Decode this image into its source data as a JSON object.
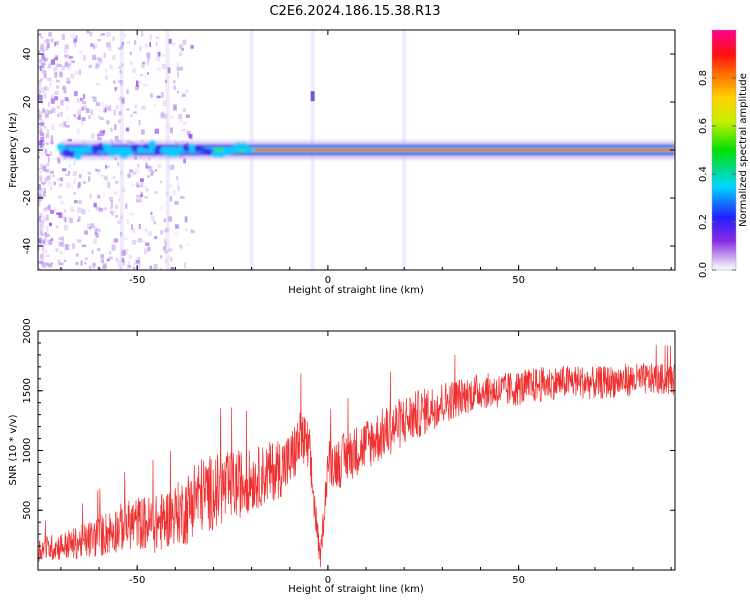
{
  "figure_title": "C2E6.2024.186.15.38.R13",
  "colors": {
    "snr_line": "#f03030",
    "axis": "#000000",
    "background": "#ffffff"
  },
  "chart_data": [
    {
      "type": "heatmap",
      "xlabel": "Height of straight line (km)",
      "ylabel": "Frequency (Hz)",
      "xlim": [
        -76,
        91
      ],
      "ylim": [
        -50,
        50
      ],
      "xticks": [
        -50,
        0,
        50
      ],
      "yticks": [
        -40,
        -20,
        0,
        20,
        40
      ],
      "colorbar": {
        "label": "Normalized spectral amplitude",
        "range": [
          0,
          1
        ],
        "ticks": [
          0.0,
          0.2,
          0.4,
          0.6,
          0.8
        ],
        "colormap": "rainbow (purple → blue → cyan → green → yellow → orange → red → magenta)"
      },
      "description_points": {
        "main_ridge_frequency_hz": 0,
        "main_ridge_x_range_km": [
          -70,
          91
        ],
        "scattered_noise_x_range_km": [
          -76,
          -40
        ],
        "feature_at_x_km": -4,
        "feature_frequency_hz": 22
      }
    },
    {
      "type": "line",
      "xlabel": "Height of straight line (km)",
      "ylabel": "SNR (10 * v/v)",
      "xlim": [
        -76,
        91
      ],
      "ylim": [
        0,
        2000
      ],
      "xticks": [
        -50,
        0,
        50
      ],
      "yticks": [
        500,
        1000,
        1500,
        2000
      ],
      "series": [
        {
          "x": [
            -76,
            -70,
            -65,
            -60,
            -55,
            -50,
            -45,
            -40,
            -37,
            -35,
            -30,
            -25,
            -20,
            -15,
            -10,
            -7,
            -5,
            -2,
            0,
            3,
            5,
            10,
            15,
            20,
            25,
            30,
            35,
            40,
            45,
            50,
            55,
            60,
            65,
            70,
            75,
            80,
            85,
            91
          ],
          "y": [
            170,
            200,
            230,
            280,
            350,
            400,
            380,
            470,
            500,
            620,
            650,
            700,
            750,
            820,
            900,
            1100,
            1000,
            80,
            900,
            900,
            950,
            1050,
            1150,
            1250,
            1320,
            1400,
            1450,
            1500,
            1500,
            1520,
            1550,
            1570,
            1580,
            1560,
            1580,
            1590,
            1600,
            1590
          ],
          "noise_amplitude": [
            100,
            120,
            140,
            180,
            200,
            220,
            250,
            250,
            300,
            320,
            320,
            300,
            260,
            260,
            250,
            250,
            250,
            80,
            200,
            220,
            220,
            220,
            220,
            220,
            200,
            180,
            160,
            150,
            150,
            150,
            150,
            140,
            140,
            140,
            140,
            140,
            130,
            130
          ]
        }
      ]
    }
  ]
}
